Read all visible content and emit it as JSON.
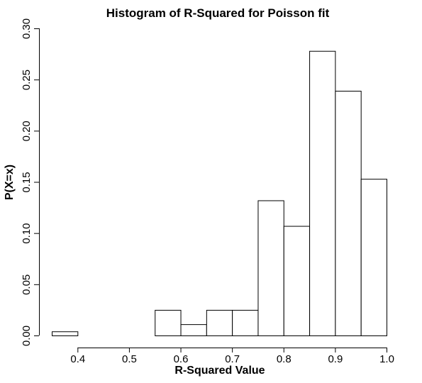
{
  "chart_data": {
    "type": "bar",
    "title": "Histogram of R-Squared for Poisson fit",
    "xlabel": "R-Squared Value",
    "ylabel": "P(X=x)",
    "xlim": [
      0.35,
      1.0
    ],
    "ylim": [
      0,
      0.3
    ],
    "x_ticks": [
      "0.4",
      "0.5",
      "0.6",
      "0.7",
      "0.8",
      "0.9",
      "1.0"
    ],
    "y_ticks": [
      "0.00",
      "0.05",
      "0.10",
      "0.15",
      "0.20",
      "0.25",
      "0.30"
    ],
    "bins": [
      {
        "x0": 0.35,
        "x1": 0.4,
        "value": 0.004
      },
      {
        "x0": 0.4,
        "x1": 0.45,
        "value": 0.0
      },
      {
        "x0": 0.45,
        "x1": 0.5,
        "value": 0.0
      },
      {
        "x0": 0.5,
        "x1": 0.55,
        "value": 0.0
      },
      {
        "x0": 0.55,
        "x1": 0.6,
        "value": 0.025
      },
      {
        "x0": 0.6,
        "x1": 0.65,
        "value": 0.011
      },
      {
        "x0": 0.65,
        "x1": 0.7,
        "value": 0.025
      },
      {
        "x0": 0.7,
        "x1": 0.75,
        "value": 0.025
      },
      {
        "x0": 0.75,
        "x1": 0.8,
        "value": 0.132
      },
      {
        "x0": 0.8,
        "x1": 0.85,
        "value": 0.107
      },
      {
        "x0": 0.85,
        "x1": 0.9,
        "value": 0.278
      },
      {
        "x0": 0.9,
        "x1": 0.95,
        "value": 0.239
      },
      {
        "x0": 0.95,
        "x1": 1.0,
        "value": 0.153
      }
    ],
    "grid": false,
    "bar_fill": "#ffffff",
    "bar_stroke": "#000000"
  }
}
